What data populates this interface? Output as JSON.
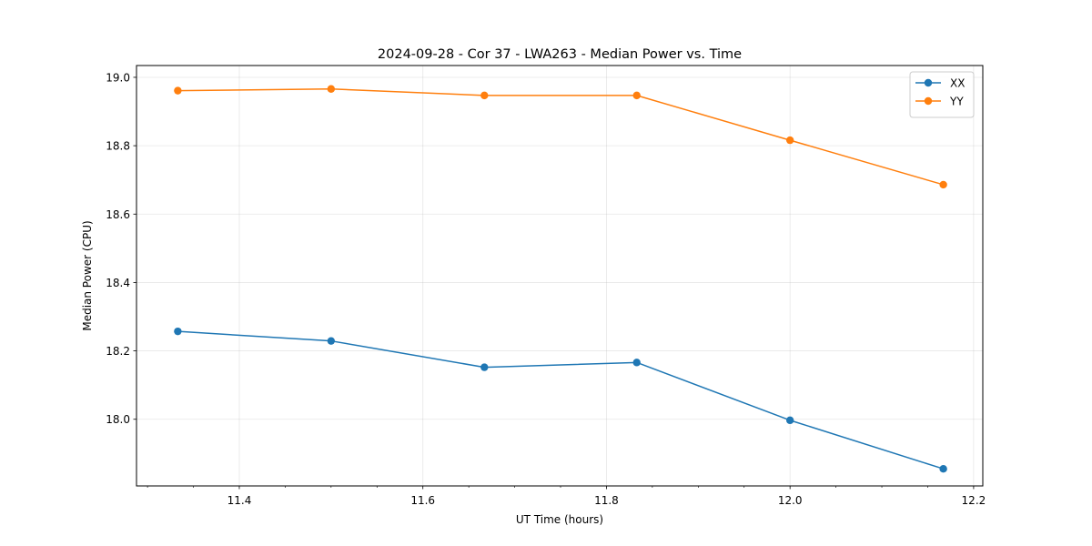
{
  "chart_data": {
    "type": "line",
    "title": "2024-09-28 - Cor 37 - LWA263 - Median Power vs. Time",
    "xlabel": "UT Time (hours)",
    "ylabel": "Median Power (CPU)",
    "xlim": [
      11.288,
      12.21
    ],
    "ylim": [
      17.805,
      19.0345
    ],
    "xticks": [
      11.4,
      11.6,
      11.8,
      12.0,
      12.2
    ],
    "xtick_labels": [
      "11.4",
      "11.6",
      "11.8",
      "12.0",
      "12.2"
    ],
    "yticks": [
      18.0,
      18.2,
      18.4,
      18.6,
      18.8,
      19.0
    ],
    "ytick_labels": [
      "18.0",
      "18.2",
      "18.4",
      "18.6",
      "18.8",
      "19.0"
    ],
    "grid": true,
    "legend_position": "top-right",
    "x": [
      11.333,
      11.5,
      11.667,
      11.833,
      12.0,
      12.167
    ],
    "series": [
      {
        "name": "XX",
        "color": "#1f77b4",
        "values": [
          18.257,
          18.229,
          18.152,
          18.166,
          17.997,
          17.855
        ]
      },
      {
        "name": "YY",
        "color": "#ff7f0e",
        "values": [
          18.961,
          18.966,
          18.947,
          18.947,
          18.816,
          18.686
        ]
      }
    ]
  }
}
